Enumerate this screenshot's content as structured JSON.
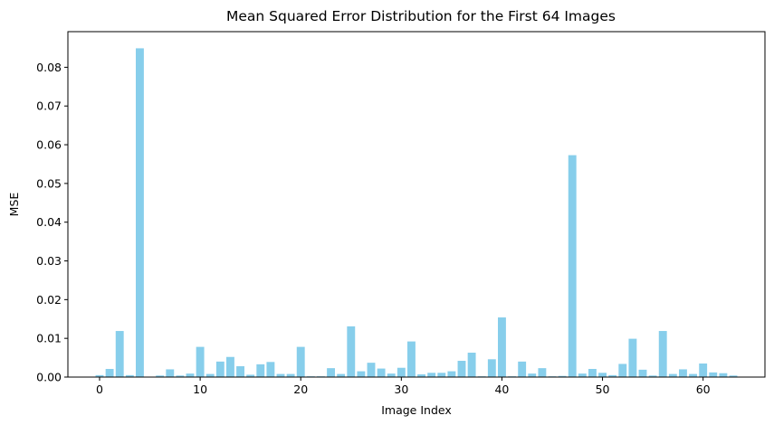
{
  "chart_data": {
    "type": "bar",
    "title": "Mean Squared Error Distribution for the First 64 Images",
    "xlabel": "Image Index",
    "ylabel": "MSE",
    "bar_color": "#87ceeb",
    "xlim": [
      -3.15,
      66.15
    ],
    "ylim": [
      0,
      0.0892
    ],
    "xticks": [
      0,
      10,
      20,
      30,
      40,
      50,
      60
    ],
    "xtick_labels": [
      "0",
      "10",
      "20",
      "30",
      "40",
      "50",
      "60"
    ],
    "yticks": [
      0.0,
      0.01,
      0.02,
      0.03,
      0.04,
      0.05,
      0.06,
      0.07,
      0.08
    ],
    "ytick_labels": [
      "0.00",
      "0.01",
      "0.02",
      "0.03",
      "0.04",
      "0.05",
      "0.06",
      "0.07",
      "0.08"
    ],
    "grid": false,
    "x": [
      0,
      1,
      2,
      3,
      4,
      5,
      6,
      7,
      8,
      9,
      10,
      11,
      12,
      13,
      14,
      15,
      16,
      17,
      18,
      19,
      20,
      21,
      22,
      23,
      24,
      25,
      26,
      27,
      28,
      29,
      30,
      31,
      32,
      33,
      34,
      35,
      36,
      37,
      38,
      39,
      40,
      41,
      42,
      43,
      44,
      45,
      46,
      47,
      48,
      49,
      50,
      51,
      52,
      53,
      54,
      55,
      56,
      57,
      58,
      59,
      60,
      61,
      62,
      63
    ],
    "values": [
      0.0005,
      0.0021,
      0.0119,
      0.0005,
      0.0849,
      0.0001,
      0.0004,
      0.002,
      0.0004,
      0.0009,
      0.0078,
      0.0008,
      0.004,
      0.0052,
      0.0028,
      0.0006,
      0.0033,
      0.0039,
      0.0008,
      0.0008,
      0.0078,
      0.0002,
      0.0002,
      0.0023,
      0.0008,
      0.0131,
      0.0015,
      0.0037,
      0.0022,
      0.0009,
      0.0024,
      0.0092,
      0.0007,
      0.0011,
      0.0011,
      0.0015,
      0.0042,
      0.0063,
      0.0002,
      0.0046,
      0.0154,
      0.0002,
      0.004,
      0.0009,
      0.0023,
      0.0002,
      0.0003,
      0.0573,
      0.0009,
      0.0021,
      0.0011,
      0.0005,
      0.0034,
      0.0099,
      0.0019,
      0.0004,
      0.0119,
      0.0008,
      0.002,
      0.0008,
      0.0035,
      0.0012,
      0.001,
      0.0004
    ]
  }
}
